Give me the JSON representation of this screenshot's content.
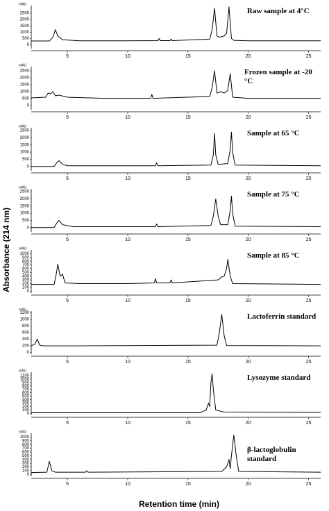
{
  "y_label": "Absorbance (214 nm)",
  "x_label": "Retention time (min)",
  "chart_data": [
    {
      "type": "line",
      "title": "Raw sample at 4°C",
      "y_unit": "mAU",
      "color": "#000000",
      "xlim": [
        2,
        26
      ],
      "xticks": [
        5,
        10,
        15,
        20,
        25
      ],
      "ylim": [
        -300,
        3100
      ],
      "yticks": [
        0,
        500,
        1000,
        1500,
        2000,
        2500
      ],
      "x": [
        2,
        3.5,
        3.8,
        4.0,
        4.2,
        4.6,
        6,
        10,
        12.5,
        12.6,
        12.7,
        13.5,
        13.6,
        13.7,
        16.8,
        17.0,
        17.2,
        17.4,
        17.6,
        17.8,
        18.0,
        18.2,
        18.4,
        18.6,
        18.8,
        20,
        26
      ],
      "values": [
        300,
        300,
        600,
        1200,
        700,
        400,
        320,
        320,
        330,
        500,
        330,
        330,
        450,
        330,
        450,
        1200,
        2900,
        700,
        600,
        650,
        700,
        900,
        3000,
        500,
        350,
        320,
        320
      ]
    },
    {
      "type": "line",
      "title": "Frozen sample at -20 °C",
      "y_unit": "mAU",
      "color": "#000000",
      "xlim": [
        2,
        26
      ],
      "xticks": [
        5,
        10,
        15,
        20,
        25
      ],
      "ylim": [
        -300,
        2800
      ],
      "yticks": [
        0,
        500,
        1000,
        1500,
        2000,
        2500
      ],
      "x": [
        2,
        3.2,
        3.4,
        3.6,
        3.8,
        4.0,
        4.3,
        5,
        8,
        11.9,
        12.0,
        12.1,
        16.8,
        17.0,
        17.2,
        17.4,
        17.7,
        18.0,
        18.3,
        18.5,
        18.7,
        20,
        26
      ],
      "values": [
        550,
        600,
        900,
        850,
        1000,
        700,
        750,
        600,
        520,
        520,
        800,
        520,
        650,
        1300,
        2500,
        900,
        1000,
        900,
        1100,
        2300,
        600,
        520,
        520
      ]
    },
    {
      "type": "line",
      "title": "Sample at  65 °C",
      "y_unit": "mAU",
      "color": "#000000",
      "xlim": [
        2,
        26
      ],
      "xticks": [
        5,
        10,
        15,
        20,
        25
      ],
      "ylim": [
        -300,
        2700
      ],
      "yticks": [
        0,
        500,
        1000,
        1500,
        2000,
        2500
      ],
      "x": [
        2,
        3.9,
        4.1,
        4.3,
        4.6,
        5,
        12.3,
        12.4,
        12.5,
        16.9,
        17.1,
        17.2,
        17.3,
        17.5,
        18.3,
        18.5,
        18.6,
        18.7,
        18.9,
        26
      ],
      "values": [
        0,
        0,
        250,
        400,
        150,
        50,
        50,
        250,
        50,
        100,
        800,
        2300,
        800,
        150,
        200,
        1200,
        2400,
        1000,
        100,
        50
      ]
    },
    {
      "type": "line",
      "title": "Sample at  75 °C",
      "y_unit": "mAU",
      "color": "#000000",
      "xlim": [
        2,
        26
      ],
      "xticks": [
        5,
        10,
        15,
        20,
        25
      ],
      "ylim": [
        -300,
        2700
      ],
      "yticks": [
        0,
        500,
        1000,
        1500,
        2000,
        2500
      ],
      "x": [
        2,
        3.9,
        4.1,
        4.3,
        4.6,
        5.5,
        12.3,
        12.4,
        12.5,
        16.9,
        17.1,
        17.3,
        17.5,
        17.7,
        18.3,
        18.5,
        18.6,
        18.7,
        18.9,
        26
      ],
      "values": [
        0,
        0,
        300,
        500,
        200,
        60,
        60,
        250,
        60,
        150,
        800,
        2000,
        800,
        200,
        200,
        1200,
        2200,
        1000,
        100,
        60
      ]
    },
    {
      "type": "line",
      "title": "Sample at  85 °C",
      "y_unit": "mAU",
      "color": "#000000",
      "xlim": [
        2,
        26
      ],
      "xticks": [
        5,
        10,
        15,
        20,
        25
      ],
      "ylim": [
        -50,
        1100
      ],
      "yticks": [
        0,
        100,
        200,
        300,
        400,
        500,
        600,
        700,
        800,
        900,
        1000
      ],
      "x": [
        2,
        3.9,
        4.1,
        4.2,
        4.4,
        4.6,
        4.8,
        6,
        10,
        12.2,
        12.3,
        12.4,
        13.5,
        13.6,
        13.7,
        17.5,
        17.8,
        18.0,
        18.2,
        18.3,
        18.5,
        18.7,
        26
      ],
      "values": [
        180,
        180,
        500,
        720,
        400,
        450,
        220,
        200,
        200,
        220,
        330,
        220,
        220,
        300,
        220,
        300,
        380,
        400,
        600,
        850,
        400,
        200,
        180
      ]
    },
    {
      "type": "line",
      "title": "Lactoferrin standard",
      "y_unit": "mAU",
      "color": "#000000",
      "xlim": [
        2,
        26
      ],
      "xticks": [
        5,
        10,
        15,
        20,
        25
      ],
      "ylim": [
        -50,
        1250
      ],
      "yticks": [
        0,
        200,
        400,
        600,
        800,
        1000,
        1200
      ],
      "x": [
        2,
        2.3,
        2.5,
        2.7,
        3,
        6,
        17.4,
        17.6,
        17.8,
        18.0,
        18.2,
        26
      ],
      "values": [
        200,
        250,
        400,
        220,
        200,
        200,
        220,
        600,
        1150,
        500,
        210,
        200
      ]
    },
    {
      "type": "line",
      "title": "Lysozyme standard",
      "y_unit": "mAU",
      "color": "#000000",
      "xlim": [
        2,
        26
      ],
      "xticks": [
        5,
        10,
        15,
        20,
        25
      ],
      "ylim": [
        -50,
        1200
      ],
      "yticks": [
        0,
        100,
        200,
        300,
        400,
        500,
        600,
        700,
        800,
        900,
        1000,
        1100
      ],
      "x": [
        2,
        16,
        16.5,
        16.7,
        16.8,
        16.9,
        17.0,
        17.1,
        17.3,
        18,
        26
      ],
      "values": [
        20,
        20,
        100,
        300,
        200,
        900,
        1150,
        700,
        100,
        40,
        30
      ]
    },
    {
      "type": "line",
      "title": "β-lactoglobulin standard",
      "y_unit": "mAU",
      "color": "#000000",
      "xlim": [
        2,
        26
      ],
      "xticks": [
        5,
        10,
        15,
        20,
        25
      ],
      "ylim": [
        -50,
        1100
      ],
      "yticks": [
        0,
        100,
        200,
        300,
        400,
        500,
        600,
        700,
        800,
        900,
        1000
      ],
      "x": [
        2,
        3.3,
        3.5,
        3.7,
        4,
        6.5,
        6.6,
        6.7,
        17.8,
        18.2,
        18.4,
        18.5,
        18.6,
        18.8,
        19.0,
        19.2,
        26
      ],
      "values": [
        50,
        60,
        350,
        100,
        60,
        60,
        100,
        60,
        80,
        200,
        400,
        150,
        500,
        1050,
        500,
        80,
        60
      ]
    }
  ]
}
